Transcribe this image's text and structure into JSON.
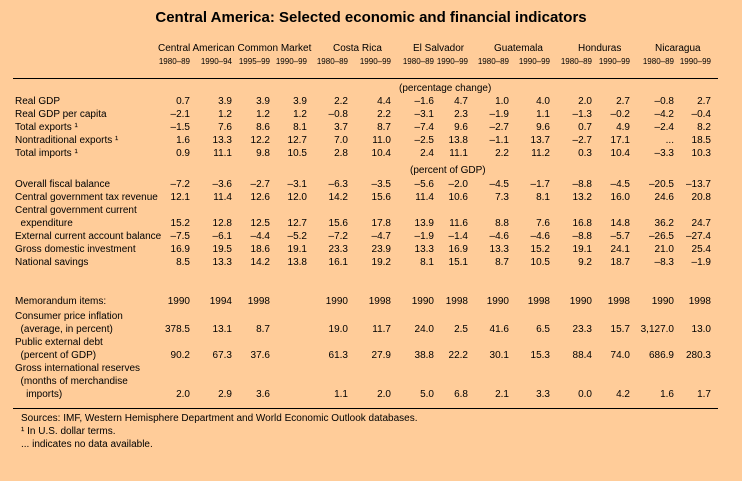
{
  "title": "Central America: Selected economic and financial indicators",
  "groups": [
    "Central American Common Market",
    "Costa Rica",
    "El Salvador",
    "Guatemala",
    "Honduras",
    "Nicaragua"
  ],
  "periods": [
    "1980–89",
    "1990–94",
    "1995–99",
    "1990–99",
    "1980–89",
    "1990–99",
    "1980–89",
    "1990–99",
    "1980–89",
    "1990–99",
    "1980–89",
    "1990–99",
    "1980–89",
    "1990–99"
  ],
  "unit_pct_change": "(percentage change)",
  "unit_pct_gdp": "(percent of GDP)",
  "section1": [
    {
      "label": "Real GDP",
      "values": [
        "0.7",
        "3.9",
        "3.9",
        "3.9",
        "2.2",
        "4.4",
        "–1.6",
        "4.7",
        "1.0",
        "4.0",
        "2.0",
        "2.7",
        "–0.8",
        "2.7"
      ]
    },
    {
      "label": "Real GDP per capita",
      "values": [
        "–2.1",
        "1.2",
        "1.2",
        "1.2",
        "–0.8",
        "2.2",
        "–3.1",
        "2.3",
        "–1.9",
        "1.1",
        "–1.3",
        "–0.2",
        "–4.2",
        "–0.4"
      ]
    },
    {
      "label": "Total exports ¹",
      "values": [
        "–1.5",
        "7.6",
        "8.6",
        "8.1",
        "3.7",
        "8.7",
        "–7.4",
        "9.6",
        "–2.7",
        "9.6",
        "0.7",
        "4.9",
        "–2.4",
        "8.2"
      ]
    },
    {
      "label": "Nontraditional exports ¹",
      "values": [
        "1.6",
        "13.3",
        "12.2",
        "12.7",
        "7.0",
        "11.0",
        "–2.5",
        "13.8",
        "–1.1",
        "13.7",
        "–2.7",
        "17.1",
        "...",
        "18.5"
      ]
    },
    {
      "label": "Total imports ¹",
      "values": [
        "0.9",
        "11.1",
        "9.8",
        "10.5",
        "2.8",
        "10.4",
        "2.4",
        "11.1",
        "2.2",
        "11.2",
        "0.3",
        "10.4",
        "–3.3",
        "10.3"
      ]
    }
  ],
  "section2": [
    {
      "label": "Overall fiscal balance",
      "values": [
        "–7.2",
        "–3.6",
        "–2.7",
        "–3.1",
        "–6.3",
        "–3.5",
        "–5.6",
        "–2.0",
        "–4.5",
        "–1.7",
        "–8.8",
        "–4.5",
        "–20.5",
        "–13.7"
      ]
    },
    {
      "label": "Central government tax revenue",
      "values": [
        "12.1",
        "11.4",
        "12.6",
        "12.0",
        "14.2",
        "15.6",
        "11.4",
        "10.6",
        "7.3",
        "8.1",
        "13.2",
        "16.0",
        "24.6",
        "20.8"
      ]
    },
    {
      "label": "Central government current",
      "values": []
    },
    {
      "label": "  expenditure",
      "values": [
        "15.2",
        "12.8",
        "12.5",
        "12.7",
        "15.6",
        "17.8",
        "13.9",
        "11.6",
        "8.8",
        "7.6",
        "16.8",
        "14.8",
        "36.2",
        "24.7"
      ]
    },
    {
      "label": "External current account balance",
      "values": [
        "–7.5",
        "–6.1",
        "–4.4",
        "–5.2",
        "–7.2",
        "–4.7",
        "–1.9",
        "–1.4",
        "–4.6",
        "–4.6",
        "–8.8",
        "–5.7",
        "–26.5",
        "–27.4"
      ]
    },
    {
      "label": "Gross domestic investment",
      "values": [
        "16.9",
        "19.5",
        "18.6",
        "19.1",
        "23.3",
        "23.9",
        "13.3",
        "16.9",
        "13.3",
        "15.2",
        "19.1",
        "24.1",
        "21.0",
        "25.4"
      ]
    },
    {
      "label": "National savings",
      "values": [
        "8.5",
        "13.3",
        "14.2",
        "13.8",
        "16.1",
        "19.2",
        "8.1",
        "15.1",
        "8.7",
        "10.5",
        "9.2",
        "18.7",
        "–8.3",
        "–1.9"
      ]
    }
  ],
  "memo": {
    "label": "Memorandum items:",
    "years": [
      "1990",
      "1994",
      "1998",
      "",
      "1990",
      "1998",
      "1990",
      "1998",
      "1990",
      "1998",
      "1990",
      "1998",
      "1990",
      "1998"
    ],
    "rows": [
      {
        "label": "Consumer price inflation",
        "values": []
      },
      {
        "label": "  (average, in percent)",
        "values": [
          "378.5",
          "13.1",
          "8.7",
          "",
          "19.0",
          "11.7",
          "24.0",
          "2.5",
          "41.6",
          "6.5",
          "23.3",
          "15.7",
          "3,127.0",
          "13.0"
        ]
      },
      {
        "label": "Public external debt",
        "values": []
      },
      {
        "label": "  (percent of GDP)",
        "values": [
          "90.2",
          "67.3",
          "37.6",
          "",
          "61.3",
          "27.9",
          "38.8",
          "22.2",
          "30.1",
          "15.3",
          "88.4",
          "74.0",
          "686.9",
          "280.3"
        ]
      },
      {
        "label": "Gross international reserves",
        "values": []
      },
      {
        "label": "  (months of merchandise",
        "values": []
      },
      {
        "label": "    imports)",
        "values": [
          "2.0",
          "2.9",
          "3.6",
          "",
          "1.1",
          "2.0",
          "5.0",
          "6.8",
          "2.1",
          "3.3",
          "0.0",
          "4.2",
          "1.6",
          "1.7"
        ]
      }
    ]
  },
  "notes": [
    "Sources:  IMF, Western Hemisphere Department and World Economic Outlook databases.",
    "¹ In U.S. dollar terms.",
    "... indicates no data available."
  ]
}
